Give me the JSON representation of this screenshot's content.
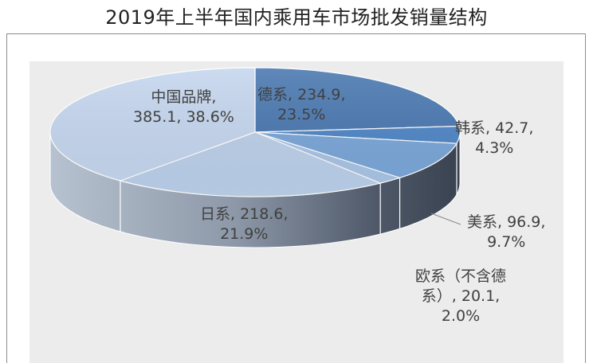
{
  "chart_data": {
    "type": "pie",
    "title": "2019年上半年国内乘用车市场批发销量结构",
    "slices": [
      {
        "name": "德系",
        "value": 234.9,
        "percent": "23.5%",
        "color": "#4a78b0"
      },
      {
        "name": "韩系",
        "value": 42.7,
        "percent": "4.3%",
        "color": "#4f86c6"
      },
      {
        "name": "美系",
        "value": 96.9,
        "percent": "9.7%",
        "color": "#7aa6d8"
      },
      {
        "name": "欧系（不含德系）",
        "value": 20.1,
        "percent": "2.0%",
        "color": "#a9c4e6"
      },
      {
        "name": "日系",
        "value": 218.6,
        "percent": "21.9%",
        "color": "#bcd0ea"
      },
      {
        "name": "中国品牌",
        "value": 385.1,
        "percent": "38.6%",
        "color": "#c5d6ee"
      }
    ],
    "labels": {
      "german": "德系, 234.9,\n23.5%",
      "korean": "韩系, 42.7,\n4.3%",
      "american": "美系, 96.9,\n9.7%",
      "european": "欧系（不含德\n系）, 20.1,\n2.0%",
      "japanese": "日系, 218.6,\n21.9%",
      "chinese": "中国品牌,\n385.1, 38.6%"
    }
  }
}
